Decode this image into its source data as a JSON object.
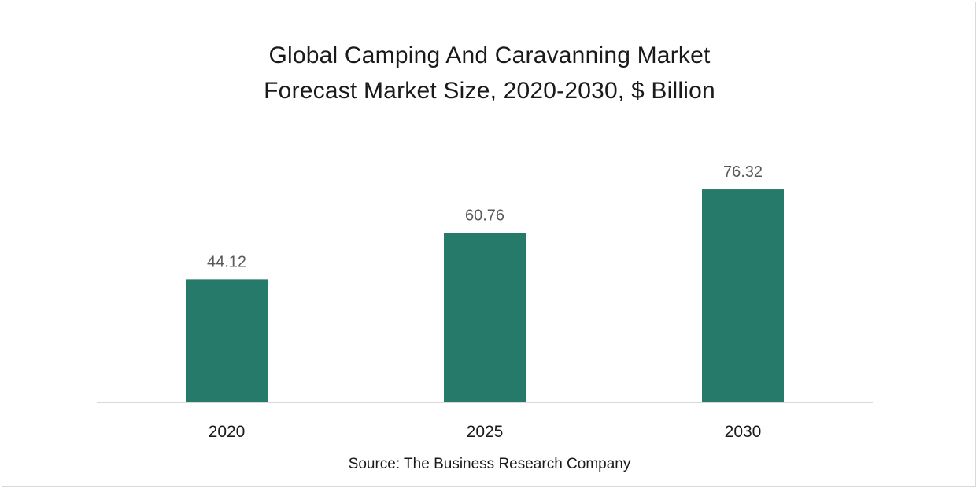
{
  "chart_data": {
    "type": "bar",
    "title_lines": [
      "Global Camping And Caravanning Market",
      "Forecast Market Size, 2020-2030, $ Billion"
    ],
    "categories": [
      "2020",
      "2025",
      "2030"
    ],
    "values": [
      44.12,
      60.76,
      76.32
    ],
    "value_labels": [
      "44.12",
      "60.76",
      "76.32"
    ],
    "ylim": [
      0,
      100
    ],
    "xlabel": "",
    "ylabel": "",
    "grid": false,
    "legend": "none",
    "bar_color": "#267a6a",
    "source": "Source: The Business Research Company"
  }
}
